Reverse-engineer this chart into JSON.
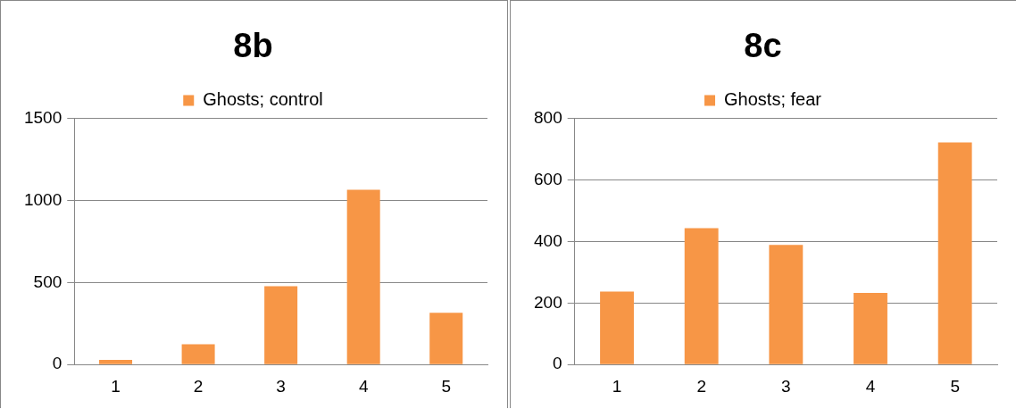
{
  "chart_data": [
    {
      "type": "bar",
      "title": "8b",
      "categories": [
        "1",
        "2",
        "3",
        "4",
        "5"
      ],
      "series": [
        {
          "name": "Ghosts; control",
          "color": "#f79646",
          "values": [
            28,
            124,
            477,
            1065,
            316
          ]
        }
      ],
      "ylim": [
        0,
        1500
      ],
      "yticks": [
        0,
        500,
        1000,
        1500
      ],
      "grid": "y",
      "legend": "top"
    },
    {
      "type": "bar",
      "title": "8c",
      "categories": [
        "1",
        "2",
        "3",
        "4",
        "5"
      ],
      "series": [
        {
          "name": "Ghosts; fear",
          "color": "#f79646",
          "values": [
            237,
            443,
            389,
            233,
            722
          ]
        }
      ],
      "ylim": [
        0,
        800
      ],
      "yticks": [
        0,
        200,
        400,
        600,
        800
      ],
      "grid": "y",
      "legend": "top"
    }
  ]
}
